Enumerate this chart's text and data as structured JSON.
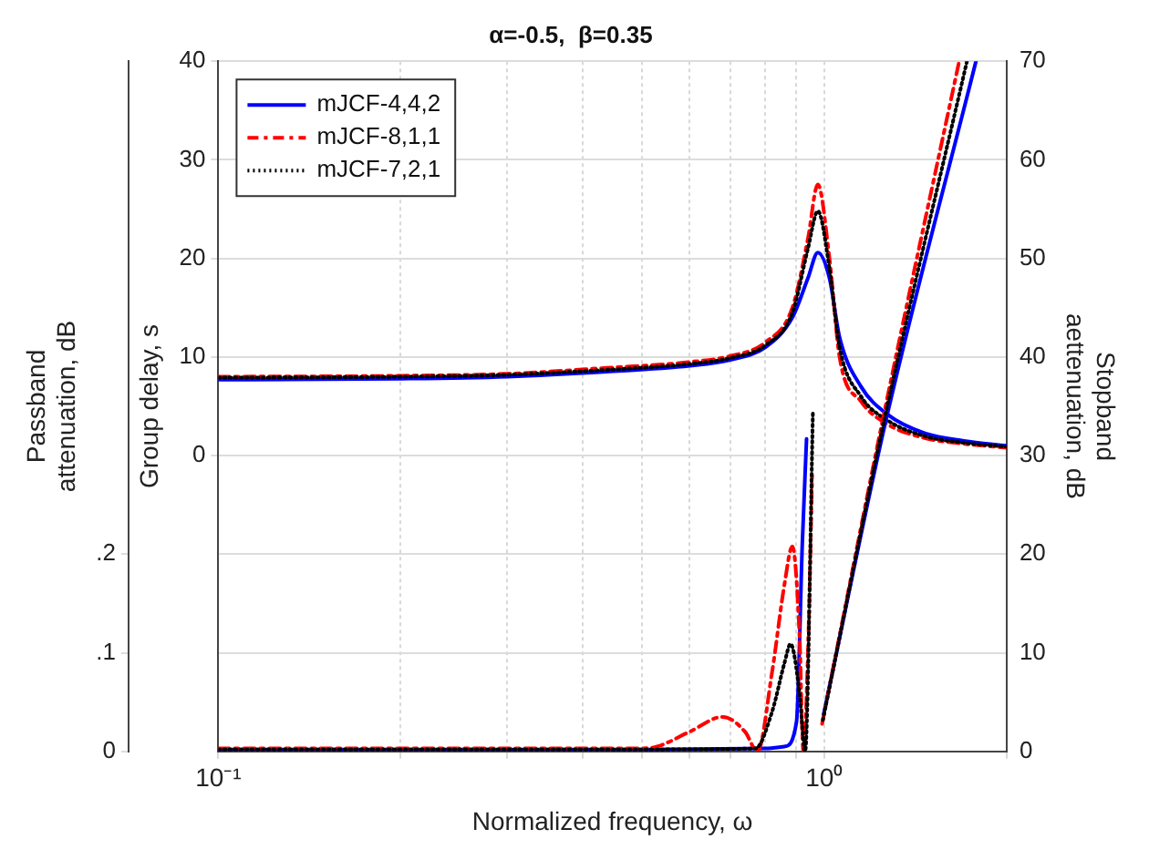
{
  "chart_data": {
    "type": "line",
    "title": "α=-0.5,  β=0.35",
    "xlabel": "Normalized frequency, ω",
    "ylabel": "Group delay, s",
    "y3label": "Passband attenuation, dB",
    "y2label": "Stopband aettenuation, dB",
    "log": "x",
    "xlim": [
      0.1,
      2
    ],
    "xticks": [
      {
        "value": 0.1,
        "label": "10⁻¹"
      },
      {
        "value": 0.2,
        "label": null
      },
      {
        "value": 0.3,
        "label": null
      },
      {
        "value": 0.4,
        "label": null
      },
      {
        "value": 0.5,
        "label": null
      },
      {
        "value": 0.6,
        "label": null
      },
      {
        "value": 0.7,
        "label": null
      },
      {
        "value": 0.8,
        "label": null
      },
      {
        "value": 0.9,
        "label": null
      },
      {
        "value": 1,
        "label": "10⁰"
      },
      {
        "value": 2,
        "label": null
      }
    ],
    "ylim": [
      -30,
      40
    ],
    "yticks": [
      0,
      10,
      20,
      30,
      40
    ],
    "y3lim": [
      0,
      0.7
    ],
    "y3ticks": [
      0,
      {
        "value": 0.1,
        "label": ".1"
      },
      {
        "value": 0.2,
        "label": ".2"
      }
    ],
    "y2lim": [
      0,
      70
    ],
    "y2ticks": [
      0,
      10,
      20,
      30,
      40,
      50,
      60,
      70
    ],
    "grid": true,
    "legend": "top left",
    "marker": "none",
    "series": [
      {
        "name": "mJCF-4,4,2",
        "color": "#0000ff",
        "line_style": "solid",
        "axis": "y",
        "x": [
          0.1,
          0.2,
          0.3,
          0.437,
          0.6,
          0.7,
          0.8,
          0.886,
          0.94,
          0.976,
          1.02,
          1.06,
          1.15,
          1.27,
          1.46,
          1.7,
          2
        ],
        "values": [
          7.7,
          7.8,
          8.0,
          8.5,
          9.1,
          9.7,
          11,
          14,
          18,
          20.6,
          18,
          12,
          7,
          4.2,
          2.3,
          1.5,
          1
        ]
      },
      {
        "name": "mJCF-8,1,1",
        "color": "#ff0000",
        "line_style": "dashed",
        "axis": "y",
        "x": [
          0.1,
          0.2,
          0.3,
          0.437,
          0.6,
          0.7,
          0.8,
          0.886,
          0.94,
          0.976,
          1.02,
          1.06,
          1.15,
          1.27,
          1.46,
          1.7,
          2
        ],
        "values": [
          8.0,
          8.1,
          8.3,
          8.9,
          9.5,
          10.1,
          11.5,
          15,
          22,
          27.5,
          20,
          10,
          5.5,
          3.2,
          1.8,
          1.2,
          0.8
        ]
      },
      {
        "name": "mJCF-7,2,1",
        "color": "#000000",
        "line_style": "dotted",
        "axis": "y",
        "x": [
          0.1,
          0.2,
          0.3,
          0.437,
          0.6,
          0.7,
          0.8,
          0.886,
          0.94,
          0.976,
          1.02,
          1.06,
          1.15,
          1.27,
          1.46,
          1.7,
          2
        ],
        "values": [
          7.9,
          8.0,
          8.2,
          8.7,
          9.3,
          9.9,
          11.2,
          14.5,
          21,
          24.8,
          19,
          11,
          6,
          3.6,
          2,
          1.3,
          0.9
        ]
      },
      {
        "color": "#0000ff",
        "line_style": "solid",
        "axis": "y3",
        "x": [
          0.1,
          0.5,
          0.8,
          0.86,
          0.9,
          0.92,
          0.935
        ],
        "values": [
          0.002,
          0.002,
          0.003,
          0.005,
          0.03,
          0.21,
          0.317
        ]
      },
      {
        "color": "#ff0000",
        "line_style": "dashed",
        "axis": "y3",
        "x": [
          0.1,
          0.5,
          0.53,
          0.6,
          0.68,
          0.74,
          0.776,
          0.82,
          0.86,
          0.886,
          0.91,
          0.924,
          0.94,
          0.955
        ],
        "values": [
          0.003,
          0.003,
          0.005,
          0.02,
          0.035,
          0.02,
          0,
          0.08,
          0.17,
          0.208,
          0.12,
          0,
          0.1,
          0.28
        ]
      },
      {
        "color": "#000000",
        "line_style": "dotted",
        "axis": "y3",
        "x": [
          0.1,
          0.5,
          0.77,
          0.82,
          0.86,
          0.88,
          0.91,
          0.93,
          0.958
        ],
        "values": [
          0.002,
          0.002,
          0.003,
          0.04,
          0.09,
          0.109,
          0.06,
          0,
          0.346
        ]
      },
      {
        "color": "#0000ff",
        "line_style": "solid",
        "axis": "y2",
        "x": [
          0.998,
          1.258,
          1.78
        ],
        "values": [
          3.8,
          33,
          70
        ]
      },
      {
        "color": "#ff0000",
        "line_style": "dashed",
        "axis": "y2",
        "x": [
          0.992,
          1.243,
          1.67
        ],
        "values": [
          2.8,
          33,
          70
        ]
      },
      {
        "color": "#000000",
        "line_style": "dotted",
        "axis": "y2",
        "x": [
          0.995,
          1.25,
          1.72
        ],
        "values": [
          3.2,
          33,
          70
        ]
      }
    ]
  }
}
